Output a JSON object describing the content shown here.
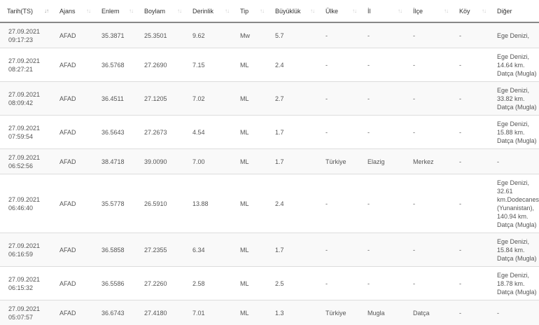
{
  "columns": [
    "Tarih(TS)",
    "Ajans",
    "Enlem",
    "Boylam",
    "Derinlik",
    "Tip",
    "Büyüklük",
    "Ülke",
    "İl",
    "İlçe",
    "Köy",
    "Diğer"
  ],
  "sort_icon": "sort-arrows-icon",
  "rows": [
    {
      "date": "27.09.2021",
      "time": "09:17:23",
      "agency": "AFAD",
      "lat": "35.3871",
      "lon": "25.3501",
      "depth": "9.62",
      "type": "Mw",
      "mag": "5.7",
      "country": "-",
      "province": "-",
      "district": "-",
      "village": "-",
      "other": [
        "Ege Denizi,"
      ]
    },
    {
      "date": "27.09.2021",
      "time": "08:27:21",
      "agency": "AFAD",
      "lat": "36.5768",
      "lon": "27.2690",
      "depth": "7.15",
      "type": "ML",
      "mag": "2.4",
      "country": "-",
      "province": "-",
      "district": "-",
      "village": "-",
      "other": [
        "Ege Denizi,",
        "14.64 km.",
        "Datça (Mugla)"
      ]
    },
    {
      "date": "27.09.2021",
      "time": "08:09:42",
      "agency": "AFAD",
      "lat": "36.4511",
      "lon": "27.1205",
      "depth": "7.02",
      "type": "ML",
      "mag": "2.7",
      "country": "-",
      "province": "-",
      "district": "-",
      "village": "-",
      "other": [
        "Ege Denizi,",
        "33.82 km.",
        "Datça (Mugla)"
      ]
    },
    {
      "date": "27.09.2021",
      "time": "07:59:54",
      "agency": "AFAD",
      "lat": "36.5643",
      "lon": "27.2673",
      "depth": "4.54",
      "type": "ML",
      "mag": "1.7",
      "country": "-",
      "province": "-",
      "district": "-",
      "village": "-",
      "other": [
        "Ege Denizi,",
        "15.88 km.",
        "Datça (Mugla)"
      ]
    },
    {
      "date": "27.09.2021",
      "time": "06:52:56",
      "agency": "AFAD",
      "lat": "38.4718",
      "lon": "39.0090",
      "depth": "7.00",
      "type": "ML",
      "mag": "1.7",
      "country": "Türkiye",
      "province": "Elazig",
      "district": "Merkez",
      "village": "-",
      "other": [
        "-"
      ]
    },
    {
      "date": "27.09.2021",
      "time": "06:46:40",
      "agency": "AFAD",
      "lat": "35.5778",
      "lon": "26.5910",
      "depth": "13.88",
      "type": "ML",
      "mag": "2.4",
      "country": "-",
      "province": "-",
      "district": "-",
      "village": "-",
      "other": [
        "Ege Denizi,",
        "32.61",
        "km.Dodecanese",
        "(Yunanistan),",
        "140.94 km.",
        "Datça (Mugla)"
      ]
    },
    {
      "date": "27.09.2021",
      "time": "06:16:59",
      "agency": "AFAD",
      "lat": "36.5858",
      "lon": "27.2355",
      "depth": "6.34",
      "type": "ML",
      "mag": "1.7",
      "country": "-",
      "province": "-",
      "district": "-",
      "village": "-",
      "other": [
        "Ege Denizi,",
        "15.84 km.",
        "Datça (Mugla)"
      ]
    },
    {
      "date": "27.09.2021",
      "time": "06:15:32",
      "agency": "AFAD",
      "lat": "36.5586",
      "lon": "27.2260",
      "depth": "2.58",
      "type": "ML",
      "mag": "2.5",
      "country": "-",
      "province": "-",
      "district": "-",
      "village": "-",
      "other": [
        "Ege Denizi,",
        "18.78 km.",
        "Datça (Mugla)"
      ]
    },
    {
      "date": "27.09.2021",
      "time": "05:07:57",
      "agency": "AFAD",
      "lat": "36.6743",
      "lon": "27.4180",
      "depth": "7.01",
      "type": "ML",
      "mag": "1.3",
      "country": "Türkiye",
      "province": "Mugla",
      "district": "Datça",
      "village": "-",
      "other": [
        "-"
      ]
    }
  ]
}
